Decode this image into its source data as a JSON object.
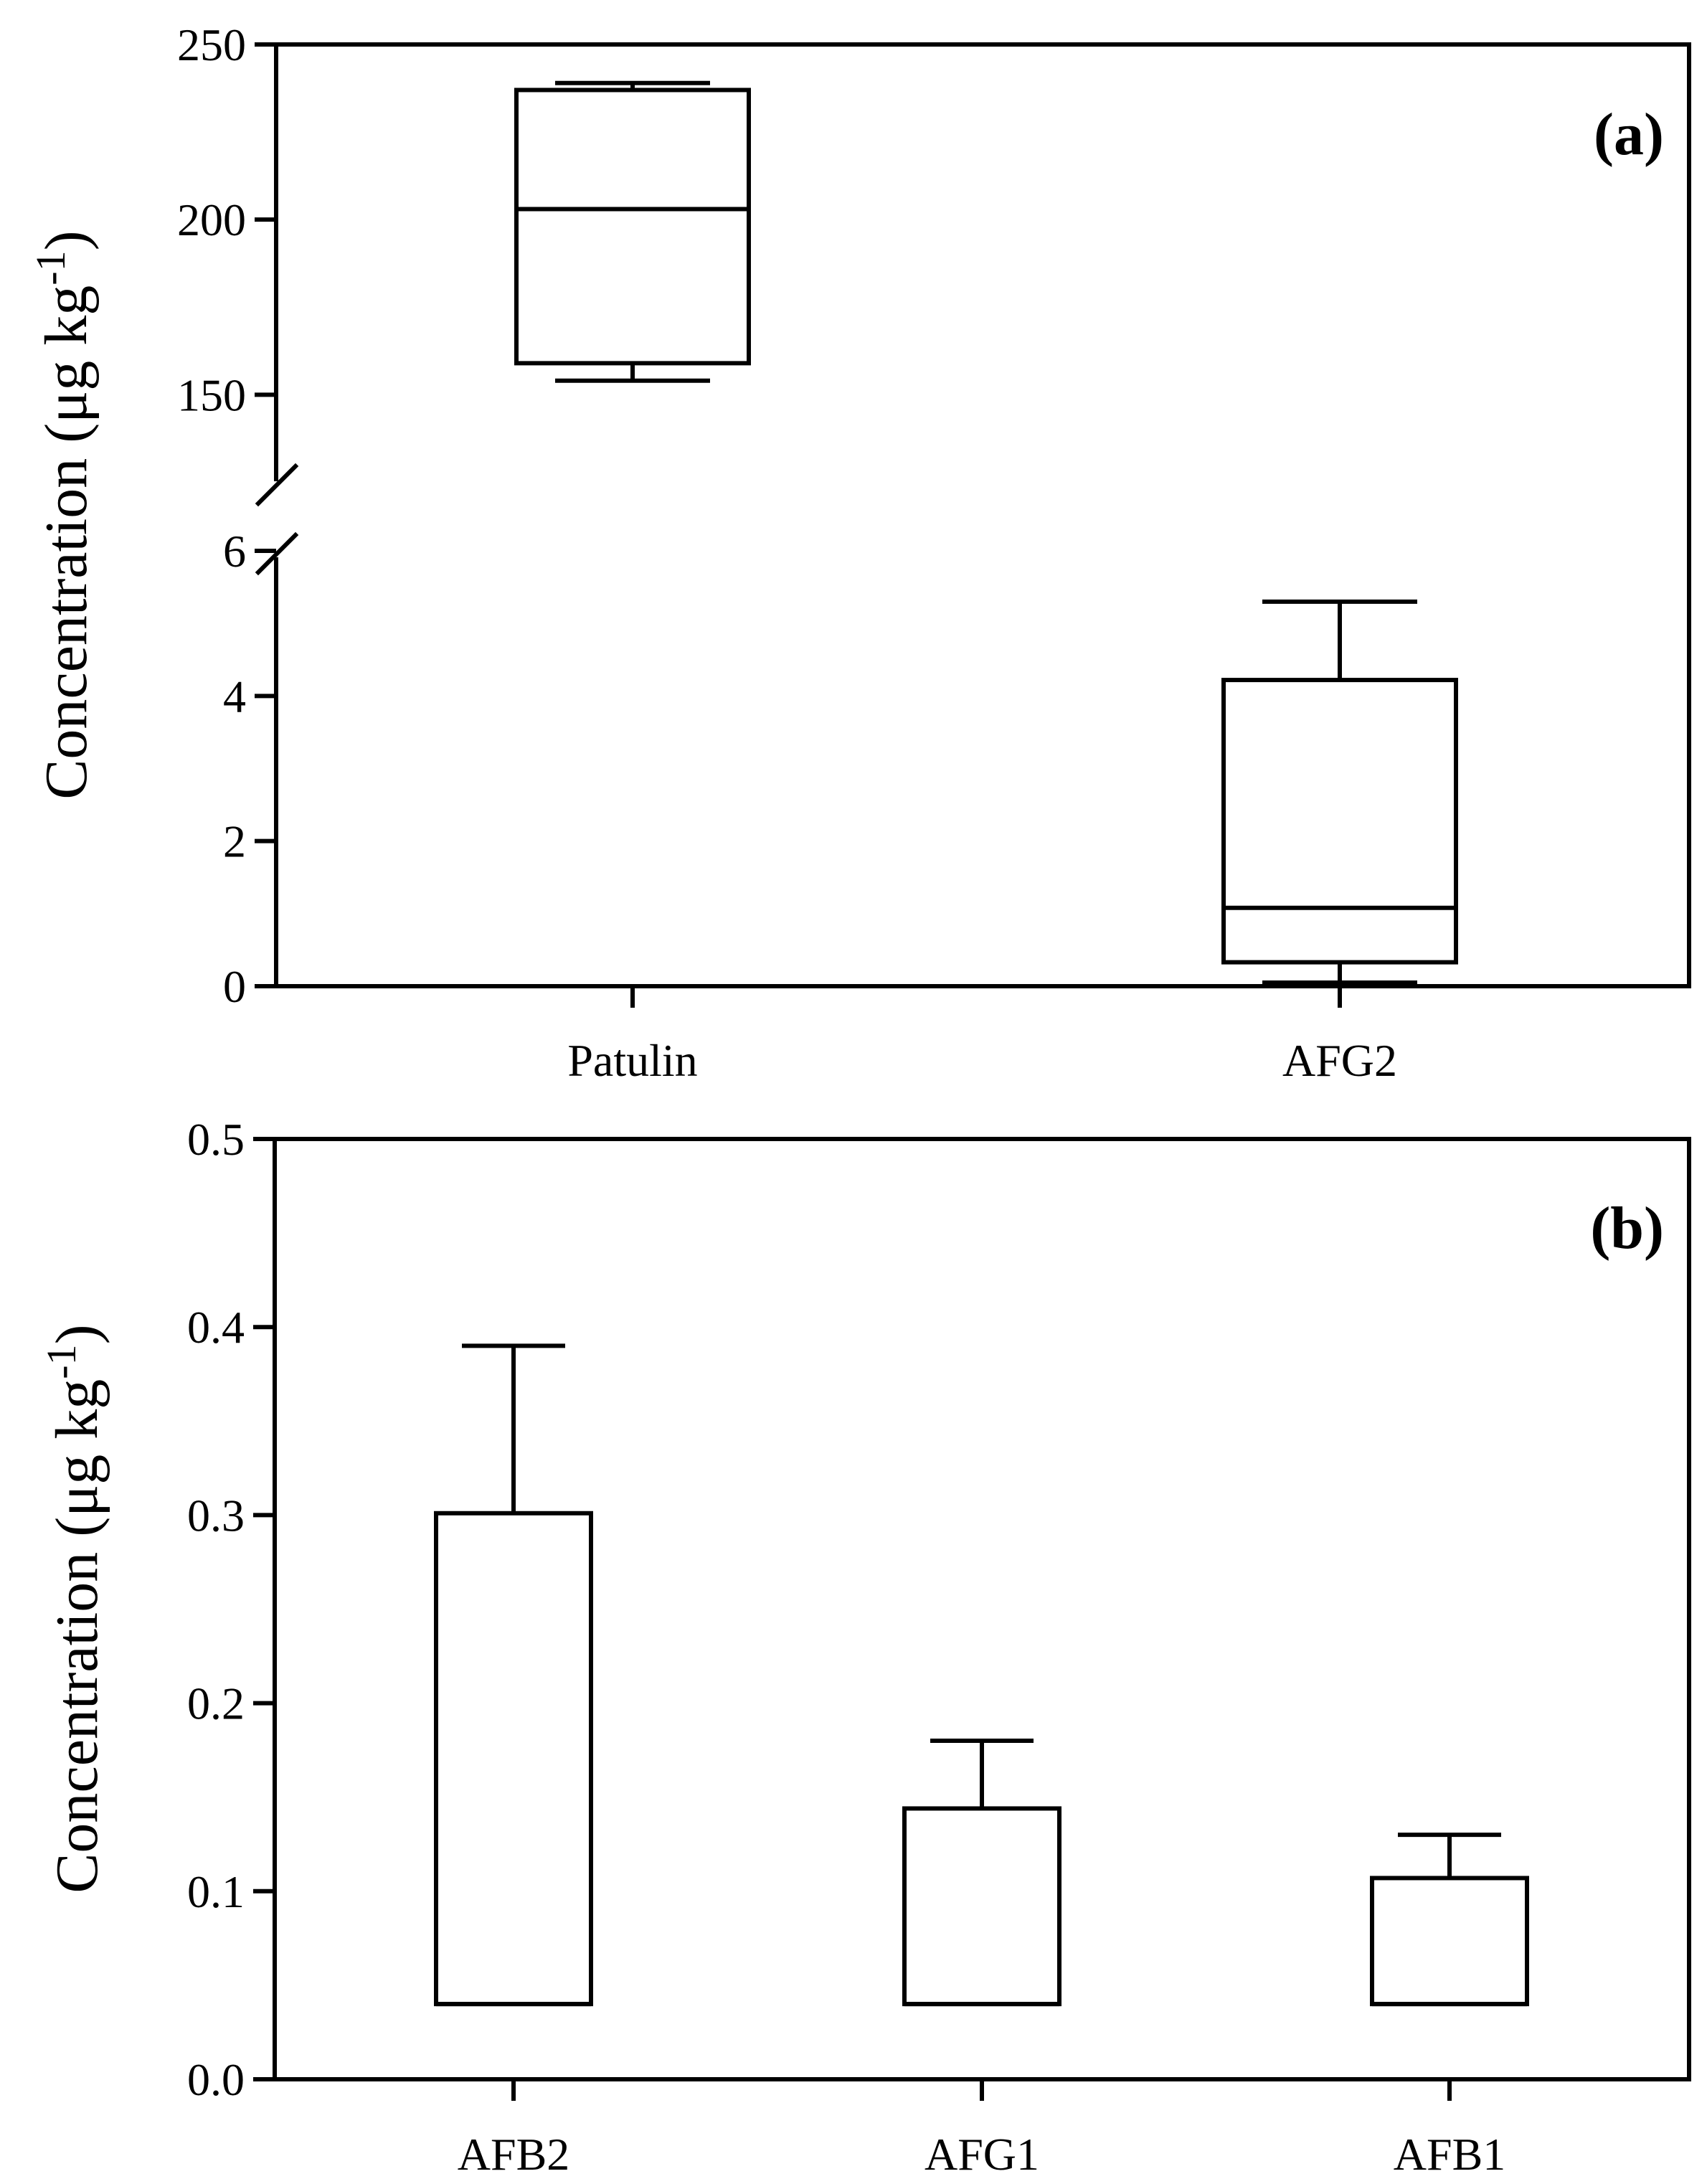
{
  "chart_data": [
    {
      "type": "box",
      "panel_label": "(a)",
      "ylabel": "Concentration (μg kg",
      "ylabel_superscript": "-1",
      "ylabel_close": ")",
      "axis_break": true,
      "upper_segment": {
        "ylim": [
          130,
          250
        ],
        "ticks": [
          150,
          200,
          250
        ],
        "tick_labels": [
          "150",
          "200",
          "250"
        ]
      },
      "lower_segment": {
        "ylim": [
          0,
          6
        ],
        "ticks": [
          0,
          2,
          4,
          6
        ],
        "tick_labels": [
          "0",
          "2",
          "4",
          "6"
        ]
      },
      "categories": [
        "Patulin",
        "AFG2"
      ],
      "boxes": [
        {
          "category": "Patulin",
          "segment": "upper",
          "min": 154,
          "q1": 159,
          "median": 203,
          "q3": 237,
          "max": 239
        },
        {
          "category": "AFG2",
          "segment": "lower",
          "min": 0.05,
          "q1": 0.33,
          "median": 1.08,
          "q3": 4.22,
          "max": 5.3
        }
      ]
    },
    {
      "type": "box",
      "panel_label": "(b)",
      "ylabel": "Concentration (μg kg",
      "ylabel_superscript": "-1",
      "ylabel_close": ")",
      "ylim": [
        0,
        0.5
      ],
      "ticks": [
        0,
        0.1,
        0.2,
        0.3,
        0.4,
        0.5
      ],
      "tick_labels": [
        "0.0",
        "0.1",
        "0.2",
        "0.3",
        "0.4",
        "0.5"
      ],
      "categories": [
        "AFB2",
        "AFG1",
        "AFB1"
      ],
      "boxes": [
        {
          "category": "AFB2",
          "min": 0.04,
          "q1": 0.04,
          "median": 0.04,
          "q3": 0.301,
          "max": 0.39
        },
        {
          "category": "AFG1",
          "min": 0.04,
          "q1": 0.04,
          "median": 0.04,
          "q3": 0.144,
          "max": 0.18
        },
        {
          "category": "AFB1",
          "min": 0.04,
          "q1": 0.04,
          "median": 0.04,
          "q3": 0.107,
          "max": 0.13
        }
      ]
    }
  ]
}
